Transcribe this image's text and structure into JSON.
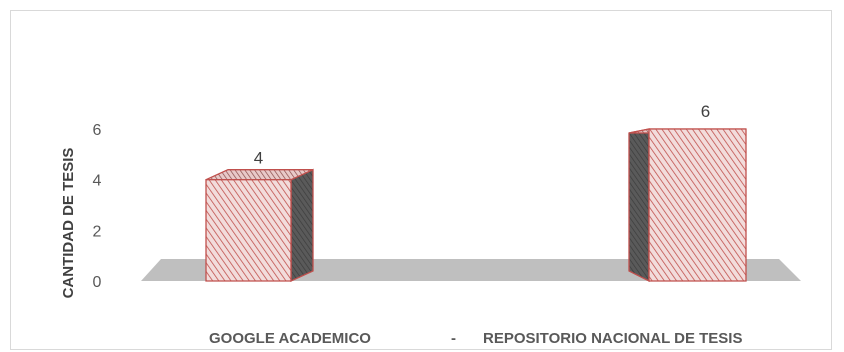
{
  "chart_data": {
    "type": "bar",
    "style": "3d-column",
    "categories": [
      "GOOGLE ACADEMICO",
      "REPOSITORIO NACIONAL DE TESIS"
    ],
    "category_separator": "-",
    "values": [
      4,
      6
    ],
    "data_labels": [
      "4",
      "6"
    ],
    "title": "",
    "xlabel": "",
    "ylabel": "CANTIDAD DE TESIS",
    "ylim": [
      0,
      6
    ],
    "yticks": [
      "0",
      "2",
      "4",
      "6"
    ],
    "grid": false,
    "legend": "none",
    "colors": {
      "bar_stroke": "#c0504d",
      "bar_fill": "#f2dcdb",
      "bar_hatch": "#c0504d",
      "bar_side": "#5a5a5a",
      "floor": "#bfbfbf"
    }
  }
}
